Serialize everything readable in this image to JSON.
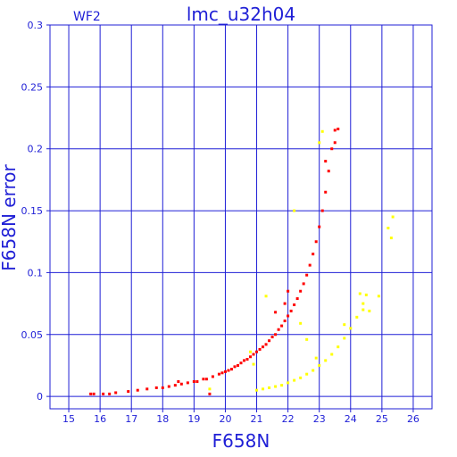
{
  "chart_data": {
    "type": "scatter",
    "title": "lmc_u32h04",
    "subtitle": "WF2",
    "xlabel": "F658N",
    "ylabel": "F658N error",
    "xlim": [
      14.4,
      26.6
    ],
    "ylim": [
      -0.01,
      0.3
    ],
    "x_ticks": [
      "15",
      "16",
      "17",
      "18",
      "19",
      "20",
      "21",
      "22",
      "23",
      "24",
      "25",
      "26"
    ],
    "y_ticks": [
      "0",
      "0.05",
      "0.1",
      "0.15",
      "0.2",
      "0.25",
      "0.3"
    ],
    "grid": true,
    "legend": "none",
    "series": [
      {
        "color": "#ff0000",
        "points": [
          [
            15.7,
            0.002
          ],
          [
            15.8,
            0.002
          ],
          [
            16.1,
            0.002
          ],
          [
            16.3,
            0.002
          ],
          [
            16.5,
            0.003
          ],
          [
            16.9,
            0.004
          ],
          [
            17.2,
            0.005
          ],
          [
            17.5,
            0.006
          ],
          [
            17.8,
            0.007
          ],
          [
            18.0,
            0.007
          ],
          [
            18.2,
            0.008
          ],
          [
            18.4,
            0.009
          ],
          [
            18.6,
            0.01
          ],
          [
            18.8,
            0.011
          ],
          [
            19.0,
            0.012
          ],
          [
            19.1,
            0.012
          ],
          [
            19.3,
            0.014
          ],
          [
            19.4,
            0.014
          ],
          [
            19.6,
            0.016
          ],
          [
            19.8,
            0.018
          ],
          [
            19.9,
            0.019
          ],
          [
            20.0,
            0.02
          ],
          [
            20.1,
            0.021
          ],
          [
            20.2,
            0.022
          ],
          [
            20.3,
            0.024
          ],
          [
            20.4,
            0.025
          ],
          [
            20.5,
            0.027
          ],
          [
            20.6,
            0.029
          ],
          [
            20.7,
            0.03
          ],
          [
            20.8,
            0.032
          ],
          [
            20.9,
            0.034
          ],
          [
            21.0,
            0.036
          ],
          [
            21.1,
            0.038
          ],
          [
            21.2,
            0.04
          ],
          [
            21.3,
            0.042
          ],
          [
            21.4,
            0.045
          ],
          [
            21.5,
            0.048
          ],
          [
            21.6,
            0.05
          ],
          [
            21.7,
            0.054
          ],
          [
            21.8,
            0.057
          ],
          [
            21.9,
            0.061
          ],
          [
            22.0,
            0.065
          ],
          [
            22.1,
            0.069
          ],
          [
            22.2,
            0.074
          ],
          [
            22.3,
            0.079
          ],
          [
            22.4,
            0.085
          ],
          [
            22.5,
            0.091
          ],
          [
            22.6,
            0.098
          ],
          [
            22.7,
            0.106
          ],
          [
            22.8,
            0.115
          ],
          [
            22.9,
            0.125
          ],
          [
            23.0,
            0.137
          ],
          [
            23.1,
            0.15
          ],
          [
            23.2,
            0.165
          ],
          [
            23.3,
            0.182
          ],
          [
            23.4,
            0.2
          ],
          [
            23.5,
            0.215
          ],
          [
            19.5,
            0.002
          ],
          [
            18.5,
            0.012
          ],
          [
            21.6,
            0.068
          ],
          [
            22.0,
            0.085
          ],
          [
            21.9,
            0.075
          ],
          [
            23.6,
            0.216
          ],
          [
            23.5,
            0.205
          ],
          [
            23.2,
            0.19
          ]
        ]
      },
      {
        "color": "#ffff00",
        "points": [
          [
            21.0,
            0.005
          ],
          [
            21.2,
            0.006
          ],
          [
            21.4,
            0.007
          ],
          [
            21.6,
            0.008
          ],
          [
            21.8,
            0.009
          ],
          [
            22.0,
            0.011
          ],
          [
            22.2,
            0.013
          ],
          [
            22.4,
            0.015
          ],
          [
            22.6,
            0.018
          ],
          [
            22.8,
            0.021
          ],
          [
            23.0,
            0.025
          ],
          [
            23.2,
            0.029
          ],
          [
            23.4,
            0.034
          ],
          [
            23.6,
            0.04
          ],
          [
            23.8,
            0.047
          ],
          [
            24.0,
            0.055
          ],
          [
            24.2,
            0.064
          ],
          [
            24.4,
            0.075
          ],
          [
            24.5,
            0.082
          ],
          [
            22.6,
            0.046
          ],
          [
            24.3,
            0.083
          ],
          [
            22.9,
            0.031
          ],
          [
            20.9,
            0.026
          ],
          [
            20.8,
            0.036
          ],
          [
            22.4,
            0.059
          ],
          [
            25.2,
            0.136
          ],
          [
            25.3,
            0.128
          ],
          [
            25.35,
            0.145
          ],
          [
            24.4,
            0.07
          ],
          [
            23.8,
            0.058
          ],
          [
            24.6,
            0.069
          ],
          [
            24.9,
            0.081
          ],
          [
            23.0,
            0.205
          ],
          [
            23.1,
            0.214
          ],
          [
            22.2,
            0.15
          ],
          [
            21.3,
            0.081
          ],
          [
            19.5,
            0.006
          ]
        ]
      }
    ]
  }
}
